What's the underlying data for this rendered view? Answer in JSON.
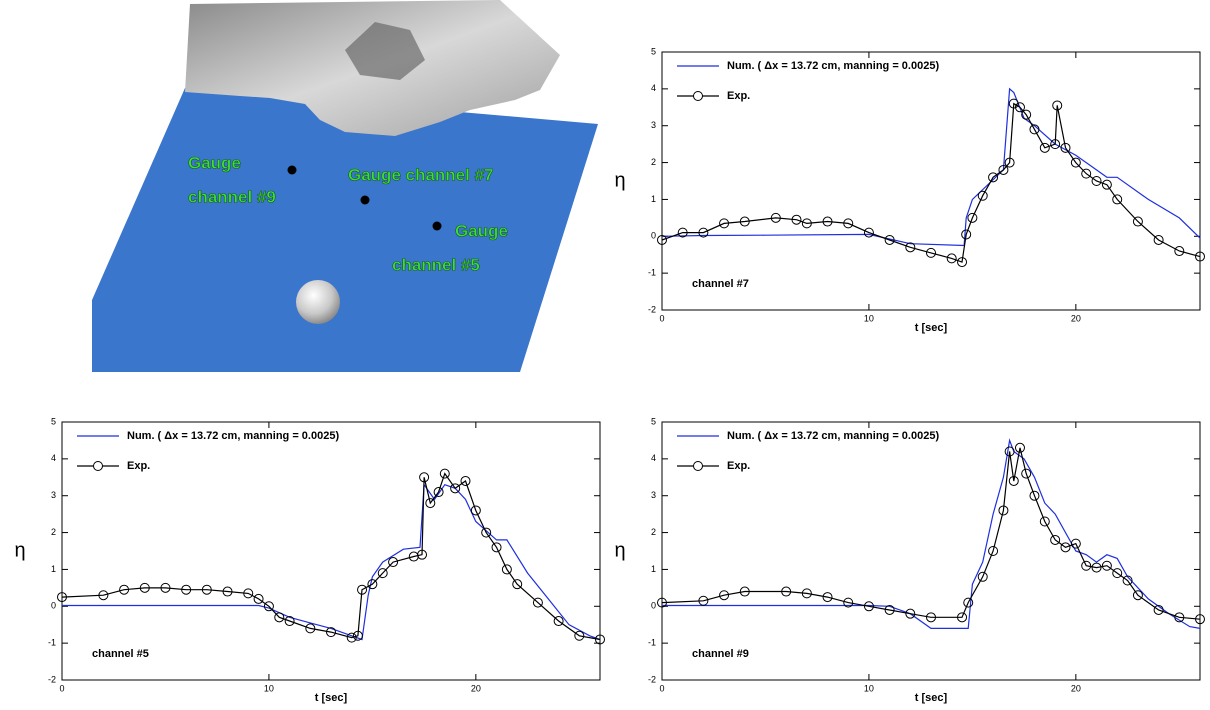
{
  "image": {
    "labels": [
      [
        "Gauge",
        "channel #9"
      ],
      [
        "Gauge channel  #7"
      ],
      [
        "Gauge",
        "channel  #5"
      ]
    ]
  },
  "chart_data": [
    {
      "type": "line",
      "x_label": "t [sec]",
      "y_label": "η",
      "annotation": "channel  #7",
      "legend": "upper left",
      "xlim": [
        0,
        26
      ],
      "ylim": [
        -2,
        5
      ],
      "xticks": [
        0,
        10,
        20
      ],
      "yticks": [
        -2,
        -1,
        0,
        1,
        2,
        3,
        4,
        5
      ],
      "series": [
        {
          "name": "Num. ( Δx = 13.72 cm, manning = 0.0025)",
          "color": "#1f2fe0",
          "marker": "none",
          "x": [
            0,
            2,
            5,
            10,
            12,
            14.6,
            14.7,
            15,
            16.5,
            16.8,
            17,
            17.5,
            18,
            19,
            20,
            21,
            21.5,
            22,
            23.5,
            25,
            26
          ],
          "values": [
            0,
            0.02,
            0.03,
            0.05,
            -0.2,
            -0.25,
            0.5,
            1.0,
            1.8,
            4.0,
            3.9,
            3.2,
            3.0,
            2.5,
            2.2,
            1.8,
            1.6,
            1.6,
            1.0,
            0.5,
            -0.05
          ]
        },
        {
          "name": "Exp.",
          "color": "#000000",
          "marker": "circle",
          "x": [
            0,
            1,
            2,
            3,
            4,
            5.5,
            6.5,
            7,
            8,
            9,
            10,
            11,
            12,
            13,
            14,
            14.5,
            14.7,
            15,
            15.5,
            16,
            16.5,
            16.8,
            17,
            17.3,
            17.6,
            18,
            18.5,
            19,
            19.1,
            19.5,
            20,
            20.5,
            21,
            21.5,
            22,
            23,
            24,
            25,
            26
          ],
          "values": [
            -0.1,
            0.1,
            0.1,
            0.35,
            0.4,
            0.5,
            0.45,
            0.35,
            0.4,
            0.35,
            0.1,
            -0.1,
            -0.3,
            -0.45,
            -0.6,
            -0.7,
            0.05,
            0.5,
            1.1,
            1.6,
            1.8,
            2.0,
            3.6,
            3.5,
            3.3,
            2.9,
            2.4,
            2.5,
            3.55,
            2.4,
            2.0,
            1.7,
            1.5,
            1.4,
            1.0,
            0.4,
            -0.1,
            -0.4,
            -0.55
          ]
        }
      ]
    },
    {
      "type": "line",
      "x_label": "t [sec]",
      "y_label": "η",
      "annotation": "channel  #5",
      "legend": "upper left",
      "xlim": [
        0,
        26
      ],
      "ylim": [
        -2,
        5
      ],
      "xticks": [
        0,
        10,
        20
      ],
      "yticks": [
        -2,
        -1,
        0,
        1,
        2,
        3,
        4,
        5
      ],
      "series": [
        {
          "name": "Num. ( Δx = 13.72 cm, manning = 0.0025)",
          "color": "#1f2fe0",
          "marker": "none",
          "x": [
            0,
            9.5,
            10,
            11,
            12,
            13,
            14,
            14.5,
            14.8,
            15,
            15.5,
            16.5,
            17.3,
            17.5,
            18,
            18.5,
            19,
            19.5,
            20,
            21,
            21.5,
            22.5,
            23.5,
            24.5,
            25.5,
            26
          ],
          "values": [
            0.02,
            0.02,
            -0.05,
            -0.3,
            -0.45,
            -0.6,
            -0.8,
            -0.9,
            0.3,
            0.8,
            1.2,
            1.55,
            1.6,
            3.3,
            2.9,
            3.3,
            3.2,
            2.9,
            2.3,
            1.8,
            1.8,
            0.9,
            0.2,
            -0.5,
            -0.8,
            -0.9
          ]
        },
        {
          "name": "Exp.",
          "color": "#000000",
          "marker": "circle",
          "x": [
            0,
            2,
            3,
            4,
            5,
            6,
            7,
            8,
            9,
            9.5,
            10,
            10.5,
            11,
            12,
            13,
            14,
            14.3,
            14.5,
            15,
            15.5,
            16,
            17,
            17.4,
            17.5,
            17.8,
            18.2,
            18.5,
            19,
            19.5,
            20,
            20.5,
            21,
            21.5,
            22,
            23,
            24,
            25,
            26
          ],
          "values": [
            0.25,
            0.3,
            0.45,
            0.5,
            0.5,
            0.45,
            0.45,
            0.4,
            0.35,
            0.2,
            0.0,
            -0.3,
            -0.4,
            -0.6,
            -0.7,
            -0.85,
            -0.8,
            0.45,
            0.6,
            0.9,
            1.2,
            1.35,
            1.4,
            3.5,
            2.8,
            3.1,
            3.6,
            3.2,
            3.4,
            2.6,
            2.0,
            1.6,
            1.0,
            0.6,
            0.1,
            -0.4,
            -0.8,
            -0.9
          ]
        }
      ]
    },
    {
      "type": "line",
      "x_label": "t [sec]",
      "y_label": "η",
      "annotation": "channel  #9",
      "legend": "upper left",
      "xlim": [
        0,
        26
      ],
      "ylim": [
        -2,
        5
      ],
      "xticks": [
        0,
        10,
        20
      ],
      "yticks": [
        -2,
        -1,
        0,
        1,
        2,
        3,
        4,
        5
      ],
      "series": [
        {
          "name": "Num. ( Δx = 13.72 cm, manning = 0.0025)",
          "color": "#1f2fe0",
          "marker": "none",
          "x": [
            0,
            10,
            11,
            12,
            13,
            14.8,
            15,
            15.5,
            16,
            16.5,
            16.8,
            17,
            17.5,
            18,
            18.5,
            19,
            20,
            20.5,
            21,
            21.5,
            22,
            22.5,
            23.5,
            24.5,
            25.5,
            26
          ],
          "values": [
            0.02,
            0.02,
            0.0,
            -0.2,
            -0.6,
            -0.6,
            0.6,
            1.2,
            2.5,
            3.5,
            4.5,
            4.2,
            4.0,
            3.5,
            2.8,
            2.5,
            1.5,
            1.4,
            1.2,
            1.4,
            1.3,
            0.8,
            0.2,
            -0.2,
            -0.55,
            -0.6
          ]
        },
        {
          "name": "Exp.",
          "color": "#000000",
          "marker": "circle",
          "x": [
            0,
            2,
            3,
            4,
            6,
            7,
            8,
            9,
            10,
            11,
            12,
            13,
            14.5,
            14.8,
            15.5,
            16,
            16.5,
            16.8,
            17,
            17.3,
            17.6,
            18,
            18.5,
            19,
            19.5,
            20,
            20.5,
            21,
            21.5,
            22,
            22.5,
            23,
            24,
            25,
            26
          ],
          "values": [
            0.1,
            0.15,
            0.3,
            0.4,
            0.4,
            0.35,
            0.25,
            0.1,
            0.0,
            -0.1,
            -0.2,
            -0.3,
            -0.3,
            0.1,
            0.8,
            1.5,
            2.6,
            4.2,
            3.4,
            4.3,
            3.6,
            3.0,
            2.3,
            1.8,
            1.6,
            1.7,
            1.1,
            1.05,
            1.1,
            0.9,
            0.7,
            0.3,
            -0.1,
            -0.3,
            -0.35
          ]
        }
      ]
    }
  ]
}
